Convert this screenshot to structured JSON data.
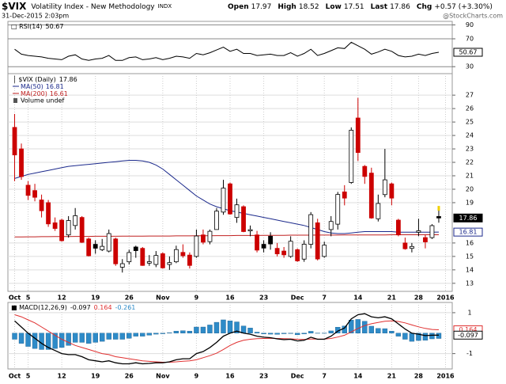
{
  "header": {
    "symbol": "$VIX",
    "name": "Volatility Index - New Methodology",
    "exchange": "INDX",
    "date": "31-Dec-2015 2:03pm",
    "labels": [
      "Open",
      "High",
      "Low",
      "Last",
      "Chg"
    ],
    "change": "+0.57 (+3.30%)",
    "copyright": "@StockCharts.com"
  },
  "chart_data": [
    {
      "type": "line",
      "title": "RSI(14)",
      "xlim": [
        -1,
        65
      ],
      "ylim": [
        20,
        95
      ],
      "yticks": [
        30,
        70,
        90
      ],
      "grid": true,
      "series": [
        {
          "color": "#000000",
          "values": [
            55,
            48,
            46,
            45,
            44,
            42,
            41,
            40,
            45,
            47,
            41,
            39,
            41,
            42,
            46,
            39,
            39,
            43,
            44,
            40,
            41,
            43,
            40,
            42,
            45,
            44,
            42,
            49,
            47,
            50,
            54,
            58,
            52,
            55,
            49,
            49,
            46,
            47,
            48,
            46,
            46,
            50,
            45,
            49,
            55,
            46,
            49,
            53,
            57,
            56,
            65,
            60,
            55,
            48,
            51,
            55,
            52,
            46,
            44,
            45,
            48,
            46,
            49,
            50.67
          ]
        }
      ]
    },
    {
      "type": "candlestick",
      "title": "$VIX (Daily)",
      "volume_label": "Volume undef",
      "xlim": [
        -1,
        65
      ],
      "ylim": [
        12.4,
        28.6
      ],
      "yticks": [
        13,
        14,
        15,
        16,
        19,
        20,
        21,
        22,
        23,
        24,
        25,
        26,
        27
      ],
      "grid": true,
      "up_color": "#000000",
      "down_color": "#cc0000",
      "xticks": [
        {
          "value": 0,
          "label": "Oct"
        },
        {
          "value": 2,
          "label": "5"
        },
        {
          "value": 7,
          "label": "12"
        },
        {
          "value": 12,
          "label": "19"
        },
        {
          "value": 17,
          "label": "26"
        },
        {
          "value": 22,
          "label": "Nov"
        },
        {
          "value": 27,
          "label": "9"
        },
        {
          "value": 32,
          "label": "16"
        },
        {
          "value": 37,
          "label": "23"
        },
        {
          "value": 42,
          "label": "Dec"
        },
        {
          "value": 46,
          "label": "7"
        },
        {
          "value": 51,
          "label": "14"
        },
        {
          "value": 56,
          "label": "21"
        },
        {
          "value": 60,
          "label": "28"
        },
        {
          "value": 64,
          "label": "2016"
        }
      ],
      "candles": {
        "open": [
          24.6,
          23.0,
          20.3,
          19.9,
          19.2,
          19.0,
          17.5,
          17.7,
          16.6,
          17.3,
          17.9,
          16.3,
          15.9,
          15.5,
          15.4,
          16.3,
          14.2,
          14.6,
          15.7,
          15.6,
          14.5,
          14.4,
          15.2,
          14.4,
          14.6,
          15.3,
          15.1,
          15.0,
          16.6,
          16.1,
          17.0,
          18.3,
          20.4,
          17.9,
          18.7,
          16.9,
          16.6,
          15.9,
          16.5,
          15.6,
          15.4,
          15.0,
          15.5,
          14.8,
          15.9,
          17.5,
          15.0,
          17.0,
          17.4,
          19.8,
          20.5,
          25.3,
          21.7,
          21.2,
          17.8,
          19.6,
          20.4,
          17.7,
          16.0,
          15.6,
          16.8,
          16.4,
          16.4,
          17.97
        ],
        "high": [
          25.6,
          23.4,
          20.6,
          20.4,
          19.6,
          19.2,
          17.9,
          17.8,
          18.0,
          18.6,
          18.0,
          16.4,
          16.2,
          16.3,
          17.0,
          16.4,
          14.8,
          15.5,
          15.8,
          15.7,
          15.1,
          15.4,
          15.3,
          15.0,
          15.8,
          15.9,
          15.3,
          17.0,
          17.0,
          17.0,
          18.6,
          20.7,
          20.5,
          19.3,
          18.8,
          17.3,
          16.9,
          16.2,
          16.8,
          16.0,
          15.7,
          16.5,
          15.6,
          16.2,
          18.3,
          17.8,
          16.1,
          18.0,
          19.8,
          20.3,
          24.6,
          26.8,
          21.8,
          21.6,
          19.6,
          23.0,
          20.5,
          17.8,
          16.4,
          16.0,
          17.8,
          16.6,
          17.4,
          18.52
        ],
        "low": [
          20.6,
          20.7,
          19.2,
          19.1,
          17.9,
          17.2,
          16.9,
          16.1,
          16.4,
          17.0,
          16.0,
          15.0,
          15.2,
          15.4,
          15.3,
          14.3,
          13.8,
          14.4,
          14.9,
          14.3,
          14.3,
          14.2,
          14.1,
          14.0,
          14.5,
          14.9,
          14.1,
          14.9,
          15.9,
          15.9,
          17.0,
          18.1,
          18.1,
          17.5,
          16.8,
          16.5,
          15.3,
          15.3,
          15.5,
          15.0,
          14.9,
          14.9,
          14.6,
          14.6,
          15.6,
          14.7,
          14.9,
          16.5,
          17.0,
          18.8,
          20.4,
          22.1,
          20.4,
          17.8,
          17.6,
          19.4,
          18.8,
          16.5,
          15.5,
          15.3,
          16.5,
          15.6,
          16.3,
          17.51
        ],
        "close": [
          22.55,
          20.94,
          19.54,
          19.4,
          18.4,
          17.42,
          17.08,
          16.17,
          17.67,
          18.03,
          16.05,
          15.05,
          15.61,
          15.75,
          16.7,
          14.45,
          14.46,
          15.29,
          15.43,
          14.33,
          14.61,
          15.07,
          14.15,
          14.54,
          15.51,
          15.05,
          14.33,
          16.52,
          16.06,
          16.87,
          18.37,
          20.08,
          18.16,
          18.84,
          16.85,
          16.99,
          15.47,
          15.62,
          15.93,
          15.19,
          15.12,
          16.13,
          14.67,
          15.91,
          18.11,
          14.81,
          15.84,
          17.6,
          19.61,
          19.34,
          24.39,
          22.73,
          20.95,
          17.86,
          18.94,
          20.7,
          19.34,
          16.6,
          15.57,
          15.74,
          16.91,
          16.08,
          17.29,
          17.86
        ]
      },
      "series": [
        {
          "name": "MA(50)",
          "color": "#1c2a8c",
          "values": [
            20.8,
            20.95,
            21.1,
            21.2,
            21.3,
            21.4,
            21.5,
            21.6,
            21.7,
            21.75,
            21.8,
            21.85,
            21.9,
            21.95,
            22.0,
            22.05,
            22.1,
            22.15,
            22.15,
            22.1,
            22.0,
            21.8,
            21.5,
            21.1,
            20.7,
            20.3,
            19.9,
            19.5,
            19.2,
            18.9,
            18.7,
            18.55,
            18.4,
            18.3,
            18.2,
            18.1,
            18.0,
            17.9,
            17.8,
            17.7,
            17.6,
            17.5,
            17.4,
            17.3,
            17.15,
            17.0,
            16.85,
            16.75,
            16.7,
            16.7,
            16.75,
            16.8,
            16.85,
            16.85,
            16.85,
            16.85,
            16.85,
            16.8,
            16.8,
            16.8,
            16.8,
            16.8,
            16.8,
            16.81
          ]
        },
        {
          "name": "MA(200)",
          "color": "#c02020",
          "values": [
            16.45,
            16.45,
            16.46,
            16.46,
            16.47,
            16.47,
            16.48,
            16.48,
            16.48,
            16.49,
            16.49,
            16.49,
            16.5,
            16.5,
            16.5,
            16.5,
            16.51,
            16.51,
            16.51,
            16.51,
            16.52,
            16.52,
            16.52,
            16.52,
            16.53,
            16.53,
            16.53,
            16.54,
            16.54,
            16.54,
            16.55,
            16.55,
            16.55,
            16.56,
            16.56,
            16.56,
            16.56,
            16.57,
            16.57,
            16.57,
            16.57,
            16.58,
            16.58,
            16.58,
            16.58,
            16.59,
            16.59,
            16.59,
            16.59,
            16.6,
            16.6,
            16.6,
            16.6,
            16.6,
            16.6,
            16.6,
            16.61,
            16.61,
            16.61,
            16.61,
            16.61,
            16.61,
            16.61,
            16.61
          ]
        }
      ]
    },
    {
      "type": "macd",
      "title": "MACD(12,26,9)",
      "xlim": [
        -1,
        65
      ],
      "ylim": [
        -1.75,
        1.5
      ],
      "yticks": [
        -1,
        1
      ],
      "grid": true,
      "xticks": [
        {
          "value": 0,
          "label": "Oct"
        },
        {
          "value": 2,
          "label": "5"
        },
        {
          "value": 7,
          "label": "12"
        },
        {
          "value": 12,
          "label": "19"
        },
        {
          "value": 17,
          "label": "26"
        },
        {
          "value": 22,
          "label": "Nov"
        },
        {
          "value": 27,
          "label": "9"
        },
        {
          "value": 32,
          "label": "16"
        },
        {
          "value": 37,
          "label": "23"
        },
        {
          "value": 42,
          "label": "Dec"
        },
        {
          "value": 46,
          "label": "7"
        },
        {
          "value": 51,
          "label": "14"
        },
        {
          "value": 56,
          "label": "21"
        },
        {
          "value": 60,
          "label": "28"
        },
        {
          "value": 64,
          "label": "2016"
        }
      ],
      "series": [
        {
          "color": "#000000",
          "values": [
            0.6,
            0.3,
            0.0,
            -0.25,
            -0.5,
            -0.7,
            -0.85,
            -1.0,
            -1.05,
            -1.05,
            -1.15,
            -1.3,
            -1.35,
            -1.4,
            -1.35,
            -1.45,
            -1.5,
            -1.5,
            -1.45,
            -1.5,
            -1.48,
            -1.45,
            -1.45,
            -1.4,
            -1.3,
            -1.25,
            -1.25,
            -1.0,
            -0.9,
            -0.7,
            -0.45,
            -0.15,
            0.0,
            0.1,
            0.0,
            -0.05,
            -0.15,
            -0.2,
            -0.22,
            -0.28,
            -0.32,
            -0.3,
            -0.38,
            -0.35,
            -0.2,
            -0.3,
            -0.3,
            -0.15,
            0.1,
            0.25,
            0.7,
            0.9,
            0.95,
            0.8,
            0.75,
            0.8,
            0.7,
            0.45,
            0.2,
            0.0,
            -0.05,
            -0.12,
            -0.1,
            -0.097
          ]
        },
        {
          "color": "#e03030",
          "values": [
            0.9,
            0.8,
            0.65,
            0.5,
            0.3,
            0.1,
            -0.1,
            -0.3,
            -0.45,
            -0.6,
            -0.7,
            -0.8,
            -0.9,
            -1.0,
            -1.05,
            -1.15,
            -1.2,
            -1.25,
            -1.3,
            -1.35,
            -1.38,
            -1.4,
            -1.42,
            -1.42,
            -1.4,
            -1.37,
            -1.35,
            -1.3,
            -1.2,
            -1.1,
            -0.98,
            -0.8,
            -0.6,
            -0.45,
            -0.35,
            -0.3,
            -0.27,
            -0.26,
            -0.25,
            -0.26,
            -0.27,
            -0.28,
            -0.3,
            -0.31,
            -0.29,
            -0.29,
            -0.29,
            -0.26,
            -0.19,
            -0.1,
            0.06,
            0.23,
            0.37,
            0.46,
            0.52,
            0.58,
            0.6,
            0.57,
            0.5,
            0.4,
            0.31,
            0.23,
            0.18,
            0.164
          ]
        },
        {
          "color": "#2e8bc8",
          "values": [
            -0.3,
            -0.5,
            -0.65,
            -0.75,
            -0.8,
            -0.8,
            -0.75,
            -0.7,
            -0.6,
            -0.45,
            -0.45,
            -0.5,
            -0.45,
            -0.4,
            -0.3,
            -0.3,
            -0.3,
            -0.25,
            -0.15,
            -0.15,
            -0.1,
            -0.05,
            -0.03,
            0.02,
            0.1,
            0.12,
            0.1,
            0.3,
            0.3,
            0.4,
            0.53,
            0.65,
            0.6,
            0.55,
            0.35,
            0.25,
            0.05,
            -0.04,
            -0.05,
            -0.06,
            -0.03,
            -0.02,
            -0.08,
            -0.04,
            0.09,
            -0.01,
            -0.01,
            0.11,
            0.29,
            0.35,
            0.64,
            0.67,
            0.58,
            0.34,
            0.23,
            0.22,
            0.1,
            -0.15,
            -0.3,
            -0.4,
            -0.36,
            -0.35,
            -0.28,
            -0.261
          ]
        }
      ]
    }
  ]
}
